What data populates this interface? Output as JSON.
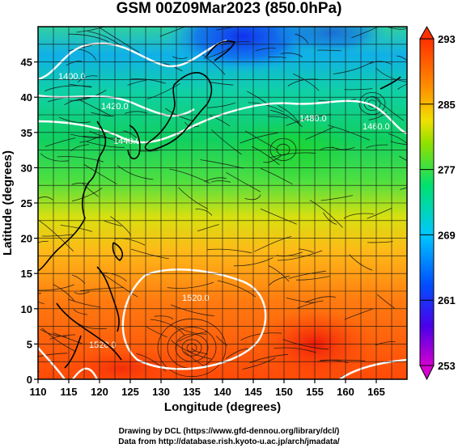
{
  "title": "GSM 00Z09Mar2023 (850.0hPa)",
  "map": {
    "xlabel": "Longitude (degrees)",
    "ylabel": "Latitude (degrees)",
    "x_ticks": [
      "110",
      "115",
      "120",
      "125",
      "130",
      "135",
      "140",
      "145",
      "150",
      "155",
      "160",
      "165"
    ],
    "y_ticks": [
      "0",
      "5",
      "10",
      "15",
      "20",
      "25",
      "30",
      "35",
      "40",
      "45"
    ],
    "xlim": [
      110,
      170
    ],
    "ylim": [
      0,
      50
    ],
    "grid": true
  },
  "contour_labels": [
    "1400.0",
    "1420.0",
    "1460.0",
    "1440.0",
    "1480.0",
    "1520.0",
    "1520.0"
  ],
  "colorbar": {
    "labels": [
      "293",
      "285",
      "277",
      "269",
      "261",
      "253"
    ],
    "min": 253,
    "max": 293,
    "colors": [
      "#d400d0",
      "#4a00e8",
      "#0050ff",
      "#00c8ff",
      "#00e070",
      "#90e000",
      "#f0e000",
      "#ff9000",
      "#ff3000"
    ]
  },
  "footer": {
    "line1": "Drawing by DCL (https://www.gfd-dennou.org/library/dcl/)",
    "line2": "Data from http://database.rish.kyoto-u.ac.jp/arch/jmadata/"
  }
}
